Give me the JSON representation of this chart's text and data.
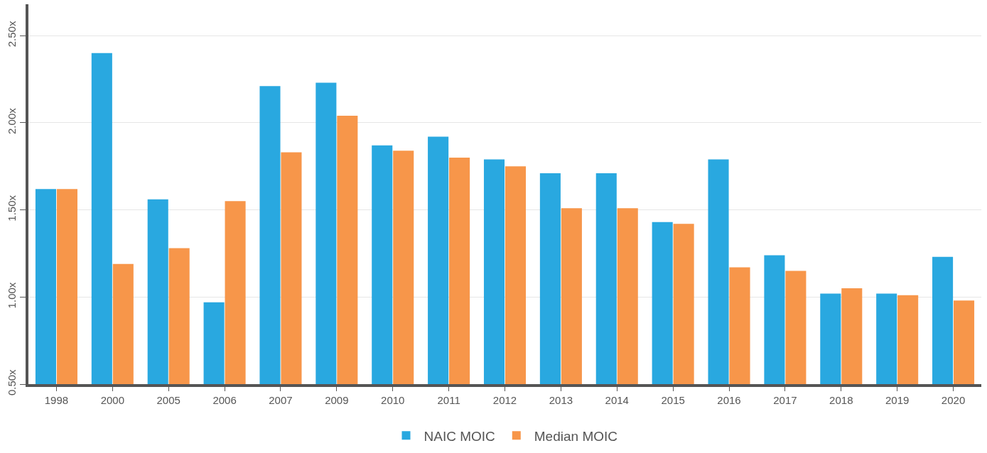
{
  "chart_data": {
    "type": "bar",
    "categories": [
      "1998",
      "2000",
      "2005",
      "2006",
      "2007",
      "2009",
      "2010",
      "2011",
      "2012",
      "2013",
      "2014",
      "2015",
      "2016",
      "2017",
      "2018",
      "2019",
      "2020"
    ],
    "series": [
      {
        "name": "NAIC MOIC",
        "color": "#29a8e0",
        "values": [
          1.62,
          2.4,
          1.56,
          0.97,
          2.21,
          2.23,
          1.87,
          1.92,
          1.79,
          1.71,
          1.71,
          1.43,
          1.79,
          1.24,
          1.02,
          1.02,
          1.23
        ]
      },
      {
        "name": "Median MOIC",
        "color": "#f7964a",
        "values": [
          1.62,
          1.19,
          1.28,
          1.55,
          1.83,
          2.04,
          1.84,
          1.8,
          1.75,
          1.51,
          1.51,
          1.42,
          1.17,
          1.15,
          1.05,
          1.01,
          0.98
        ]
      }
    ],
    "ylim": [
      0.5,
      2.68
    ],
    "yticks": [
      {
        "value": 0.5,
        "label": "0.50x"
      },
      {
        "value": 1.0,
        "label": "1.00x"
      },
      {
        "value": 1.5,
        "label": "1.50x"
      },
      {
        "value": 2.0,
        "label": "2.00x"
      },
      {
        "value": 2.5,
        "label": "2.50x"
      }
    ],
    "grid": "y",
    "legend": "bottom"
  }
}
